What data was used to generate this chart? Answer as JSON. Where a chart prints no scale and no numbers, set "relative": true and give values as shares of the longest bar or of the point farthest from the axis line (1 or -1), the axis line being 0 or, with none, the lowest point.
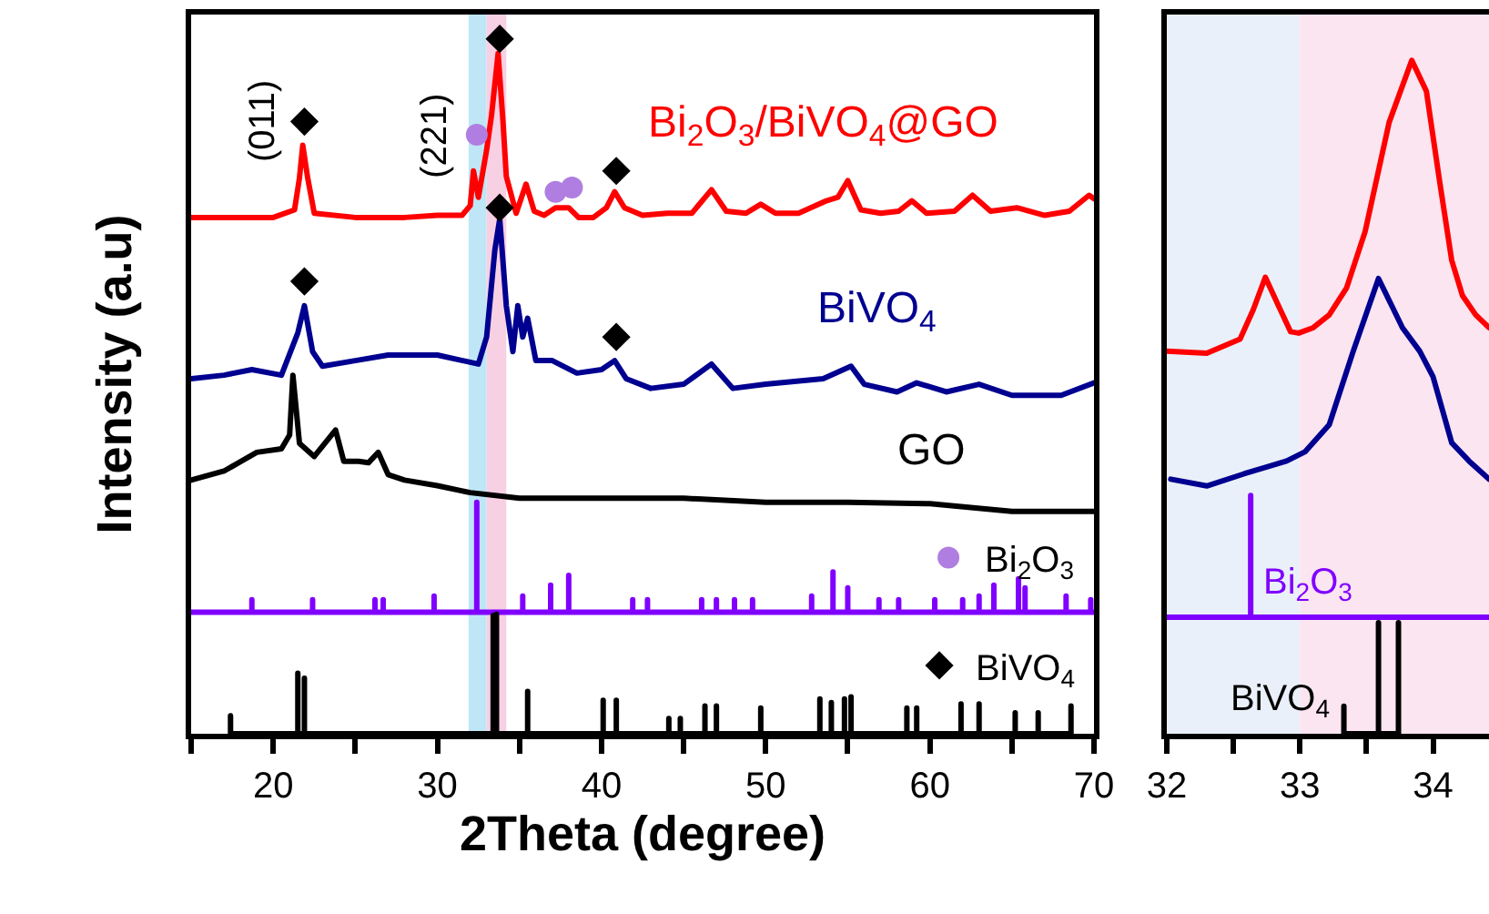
{
  "chart_data": [
    {
      "type": "line",
      "xlabel": "2Theta (degree)",
      "ylabel": "Intensity (a.u)",
      "relative": true,
      "xlim": [
        15,
        70
      ],
      "xticks": [
        {
          "value": 15,
          "label": null
        },
        20,
        {
          "value": 25,
          "label": null
        },
        30,
        {
          "value": 35,
          "label": null
        },
        40,
        {
          "value": 45,
          "label": null
        },
        50,
        {
          "value": 55,
          "label": null
        },
        60,
        {
          "value": 65,
          "label": null
        },
        70
      ],
      "tick_labels": "x",
      "legend": "right",
      "bands": [
        {
          "axis": "x",
          "from": 31.9,
          "to": 33.0,
          "color": "#bfe6f6"
        },
        {
          "axis": "x",
          "from": 33.0,
          "to": 34.2,
          "color": "#f8d0e4"
        }
      ],
      "annotations": [
        {
          "text": "(011)",
          "x": 21.9,
          "y": 0.881
        },
        {
          "text": "(221)",
          "x": 32.4,
          "y": 0.862
        }
      ],
      "series": [
        {
          "name": "Bi$_{2}$O$_{3}$/BiVO$_{4}$@GO",
          "color": "#ff0000",
          "x": [
            15,
            18,
            20,
            21.3,
            21.6,
            21.8,
            22.1,
            22.5,
            25,
            28,
            30,
            31.5,
            32.0,
            32.2,
            32.5,
            33.0,
            33.3,
            33.7,
            34.0,
            34.2,
            34.8,
            35.4,
            35.9,
            36.5,
            37.2,
            38.0,
            38.6,
            39.5,
            40.3,
            40.8,
            41.4,
            42.5,
            44,
            45.5,
            46.7,
            47.6,
            48.8,
            49.7,
            50.6,
            52,
            53.7,
            54.4,
            55.0,
            55.8,
            57,
            58.1,
            58.9,
            59.8,
            61.5,
            62.6,
            63.7,
            65.3,
            67,
            68.5,
            69.7,
            70
          ],
          "values": [
            0.743,
            0.743,
            0.743,
            0.754,
            0.8,
            0.847,
            0.8,
            0.749,
            0.743,
            0.743,
            0.746,
            0.746,
            0.76,
            0.81,
            0.772,
            0.84,
            0.89,
            0.979,
            0.88,
            0.802,
            0.749,
            0.791,
            0.752,
            0.746,
            0.757,
            0.757,
            0.743,
            0.743,
            0.757,
            0.78,
            0.757,
            0.746,
            0.749,
            0.749,
            0.783,
            0.752,
            0.749,
            0.762,
            0.749,
            0.749,
            0.767,
            0.772,
            0.796,
            0.754,
            0.749,
            0.752,
            0.767,
            0.749,
            0.752,
            0.775,
            0.752,
            0.757,
            0.746,
            0.752,
            0.775,
            0.77
          ]
        },
        {
          "name": "BiVO$_{4}$",
          "color": "#000090",
          "x": [
            15,
            17,
            18.7,
            20.5,
            21.5,
            21.9,
            22.4,
            23,
            25,
            27,
            30,
            32.5,
            33.0,
            33.5,
            33.8,
            34.2,
            34.6,
            34.9,
            35.2,
            35.5,
            36.0,
            37,
            38.5,
            40,
            40.8,
            41.5,
            43,
            45,
            46.7,
            48,
            50,
            53.5,
            55.2,
            56,
            58,
            59.2,
            61,
            63,
            65,
            68,
            70
          ],
          "values": [
            0.511,
            0.516,
            0.524,
            0.516,
            0.577,
            0.616,
            0.55,
            0.529,
            0.537,
            0.545,
            0.545,
            0.532,
            0.571,
            0.696,
            0.741,
            0.616,
            0.55,
            0.616,
            0.571,
            0.598,
            0.537,
            0.537,
            0.519,
            0.524,
            0.537,
            0.511,
            0.497,
            0.503,
            0.532,
            0.497,
            0.503,
            0.511,
            0.529,
            0.503,
            0.492,
            0.505,
            0.492,
            0.503,
            0.487,
            0.487,
            0.505
          ]
        },
        {
          "name": "GO",
          "color": "#000000",
          "x": [
            15,
            17,
            19,
            20.5,
            21.0,
            21.2,
            21.6,
            22.5,
            23.8,
            24.3,
            25.2,
            25.8,
            26.4,
            27,
            28,
            30,
            32,
            35,
            40,
            45,
            50,
            55,
            60,
            65,
            70
          ],
          "values": [
            0.365,
            0.378,
            0.405,
            0.41,
            0.43,
            0.516,
            0.418,
            0.399,
            0.437,
            0.392,
            0.392,
            0.39,
            0.405,
            0.373,
            0.365,
            0.357,
            0.347,
            0.339,
            0.339,
            0.339,
            0.333,
            0.333,
            0.331,
            0.32,
            0.32
          ]
        },
        {
          "color": "#8000ff",
          "x": [
            15,
            18.7,
            18.7,
            18.7,
            22.4,
            22.4,
            22.4,
            26.2,
            26.2,
            26.2,
            26.7,
            26.7,
            26.7,
            29.8,
            29.8,
            29.8,
            32.4,
            32.4,
            32.4,
            35.2,
            35.2,
            35.2,
            36.9,
            36.9,
            36.9,
            38.0,
            38.0,
            38.0,
            41.9,
            41.9,
            41.9,
            42.8,
            42.8,
            42.8,
            46.1,
            46.1,
            46.1,
            47.0,
            47.0,
            47.0,
            48.1,
            48.1,
            48.1,
            49.2,
            49.2,
            49.2,
            52.8,
            52.8,
            52.8,
            54.1,
            54.1,
            54.1,
            55.0,
            55.0,
            55.0,
            56.9,
            56.9,
            56.9,
            58.1,
            58.1,
            58.1,
            60.3,
            60.3,
            60.3,
            62.0,
            62.0,
            62.0,
            63.0,
            63.0,
            63.0,
            63.9,
            63.9,
            63.9,
            65.4,
            65.4,
            65.4,
            65.8,
            65.8,
            65.8,
            68.3,
            68.3,
            68.3,
            69.8,
            69.8,
            69.8,
            70
          ],
          "values": [
            0.175,
            0.175,
            0.193,
            0.175,
            0.175,
            0.193,
            0.175,
            0.175,
            0.193,
            0.175,
            0.175,
            0.193,
            0.175,
            0.175,
            0.198,
            0.175,
            0.175,
            0.333,
            0.175,
            0.175,
            0.198,
            0.175,
            0.175,
            0.214,
            0.175,
            0.175,
            0.228,
            0.175,
            0.175,
            0.193,
            0.175,
            0.175,
            0.193,
            0.175,
            0.175,
            0.193,
            0.175,
            0.175,
            0.193,
            0.175,
            0.175,
            0.193,
            0.175,
            0.175,
            0.193,
            0.175,
            0.175,
            0.198,
            0.175,
            0.175,
            0.233,
            0.175,
            0.175,
            0.21,
            0.175,
            0.175,
            0.193,
            0.175,
            0.175,
            0.193,
            0.175,
            0.175,
            0.193,
            0.175,
            0.175,
            0.193,
            0.175,
            0.175,
            0.198,
            0.175,
            0.175,
            0.214,
            0.175,
            0.175,
            0.223,
            0.175,
            0.175,
            0.21,
            0.175,
            0.175,
            0.198,
            0.175,
            0.175,
            0.193,
            0.175,
            0.175
          ]
        },
        {
          "color": "#000000",
          "x": [
            17.4,
            17.4,
            17.4,
            21.5,
            21.5,
            21.5,
            21.9,
            21.9,
            21.9,
            33.4,
            33.4,
            33.4,
            33.6,
            33.6,
            33.6,
            35.5,
            35.5,
            35.5,
            40.1,
            40.1,
            40.1,
            40.9,
            40.9,
            40.9,
            44.1,
            44.1,
            44.1,
            44.8,
            44.8,
            44.8,
            46.3,
            46.3,
            46.3,
            47.0,
            47.0,
            47.0,
            49.7,
            49.7,
            49.7,
            53.3,
            53.3,
            53.3,
            54.0,
            54.0,
            54.0,
            54.8,
            54.8,
            54.8,
            55.2,
            55.2,
            55.2,
            58.6,
            58.6,
            58.6,
            59.2,
            59.2,
            59.2,
            61.9,
            61.9,
            61.9,
            63.0,
            63.0,
            63.0,
            65.2,
            65.2,
            65.2,
            66.6,
            66.6,
            66.6,
            68.6,
            68.6,
            68.6
          ],
          "values": [
            0,
            0.026,
            0,
            0,
            0.087,
            0,
            0,
            0.08,
            0,
            0,
            0.17,
            0,
            0,
            0.172,
            0,
            0,
            0.061,
            0,
            0,
            0.048,
            0,
            0,
            0.048,
            0,
            0,
            0.022,
            0,
            0,
            0.022,
            0,
            0,
            0.04,
            0,
            0,
            0.04,
            0,
            0,
            0.037,
            0,
            0,
            0.05,
            0,
            0,
            0.045,
            0,
            0,
            0.05,
            0,
            0,
            0.053,
            0,
            0,
            0.037,
            0,
            0,
            0.037,
            0,
            0,
            0.043,
            0,
            0,
            0.043,
            0,
            0,
            0.03,
            0,
            0,
            0.03,
            0,
            0,
            0.04,
            0
          ]
        },
        {
          "type": "scatter",
          "name": "Bi$_{2}$O$_{3}$",
          "marker": "circle",
          "color": "#b07ee0",
          "x": [
            32.4,
            37.2,
            38.2
          ],
          "values": [
            0.862,
            0.78,
            0.786
          ]
        },
        {
          "type": "scatter",
          "name": "BiVO$_{4}$",
          "marker": "diamond",
          "color": "#000000",
          "x": [
            21.9,
            33.8,
            40.9,
            21.9,
            33.8,
            40.9
          ],
          "values": [
            0.881,
            1.0,
            0.81,
            0.651,
            0.757,
            0.571
          ]
        }
      ]
    },
    {
      "type": "line",
      "relative": true,
      "xlim": [
        32,
        34.42
      ],
      "xticks": [
        32,
        {
          "value": 32.5,
          "label": null
        },
        33,
        {
          "value": 33.5,
          "label": null
        },
        34
      ],
      "tick_labels": "x",
      "bands": [
        {
          "axis": "x",
          "from": 32,
          "to": 33.0,
          "color": "#eaf0f9"
        },
        {
          "axis": "x",
          "from": 33.0,
          "to": 34.42,
          "color": "#fae5f0"
        }
      ],
      "series": [
        {
          "color": "#ff0000",
          "x": [
            32.0,
            32.3,
            32.55,
            32.65,
            32.74,
            32.84,
            32.93,
            32.99,
            33.1,
            33.22,
            33.35,
            33.49,
            33.67,
            33.84,
            33.95,
            34.05,
            34.14,
            34.22,
            34.32,
            34.42
          ],
          "values": [
            0.568,
            0.565,
            0.586,
            0.63,
            0.678,
            0.635,
            0.597,
            0.595,
            0.603,
            0.622,
            0.662,
            0.746,
            0.908,
            1.0,
            0.954,
            0.819,
            0.703,
            0.651,
            0.622,
            0.603
          ]
        },
        {
          "color": "#000090",
          "x": [
            32.03,
            32.3,
            32.58,
            32.9,
            33.04,
            33.22,
            33.4,
            33.59,
            33.77,
            33.9,
            34.0,
            34.14,
            34.27,
            34.42
          ],
          "values": [
            0.378,
            0.368,
            0.386,
            0.405,
            0.419,
            0.459,
            0.568,
            0.676,
            0.603,
            0.568,
            0.53,
            0.432,
            0.405,
            0.378
          ]
        },
        {
          "name": "Bi$_{2}$O$_{3}$",
          "color": "#8000ff",
          "x": [
            32,
            32.63,
            32.63,
            32.63,
            34.42
          ],
          "values": [
            0.173,
            0.173,
            0.354,
            0.173,
            0.173
          ]
        },
        {
          "name": "BiVO$_{4}$",
          "color": "#000000",
          "x": [
            33.33,
            33.33,
            33.33,
            33.59,
            33.59,
            33.59,
            33.74,
            33.74,
            33.74
          ],
          "values": [
            0,
            0.041,
            0,
            0,
            0.165,
            0,
            0,
            0.165,
            0
          ]
        }
      ]
    }
  ]
}
